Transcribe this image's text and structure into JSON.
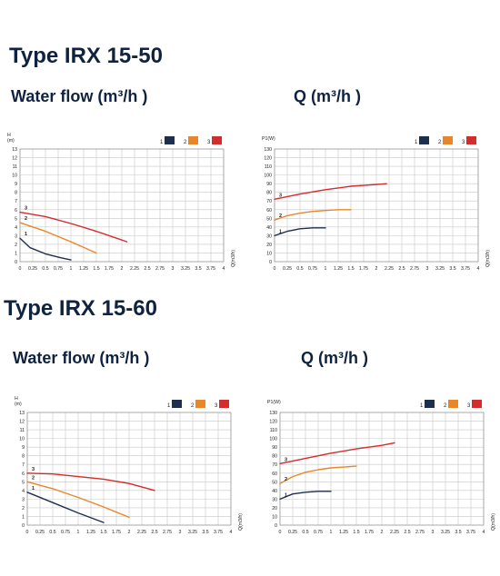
{
  "headings": {
    "type1": "Type IRX 15-50",
    "type2": "Type IRX 15-60",
    "wf1": "Water flow (m³/h )",
    "q1": "Q (m³/h )",
    "wf2": "Water flow (m³/h )",
    "q2": "Q (m³/h )"
  },
  "colors": {
    "1": "#1d2f4f",
    "2": "#e8862a",
    "3": "#d42b2b"
  },
  "chart_data": [
    {
      "type": "line",
      "ylabel_lines": [
        "H",
        "(m)"
      ],
      "xlabel": "Q(m3/h)",
      "xticks": [
        "0",
        "0.25",
        "0.5",
        "0.75",
        "1",
        "1.25",
        "1.5",
        "1.75",
        "2",
        "2.25",
        "2.5",
        "2.75",
        "3",
        "3.25",
        "3.5",
        "3.75",
        "4"
      ],
      "yticks": [
        "0",
        "1",
        "2",
        "3",
        "4",
        "5",
        "6",
        "7",
        "8",
        "9",
        "10",
        "11",
        "12",
        "13"
      ],
      "xlim": [
        0,
        4
      ],
      "ylim": [
        0,
        13
      ],
      "legend": [
        "1",
        "2",
        "3"
      ],
      "series": [
        {
          "label": "1",
          "color": "1",
          "x": [
            0,
            0.2,
            0.5,
            0.8,
            1.0
          ],
          "y": [
            2.7,
            1.6,
            0.9,
            0.45,
            0.2
          ]
        },
        {
          "label": "2",
          "color": "2",
          "x": [
            0,
            0.5,
            1.0,
            1.5
          ],
          "y": [
            4.5,
            3.5,
            2.3,
            1.0
          ]
        },
        {
          "label": "3",
          "color": "3",
          "x": [
            0,
            0.5,
            1.0,
            1.5,
            2.1
          ],
          "y": [
            5.7,
            5.2,
            4.4,
            3.5,
            2.3
          ]
        }
      ]
    },
    {
      "type": "line",
      "ylabel_lines": [
        "P1(W)"
      ],
      "xlabel": "Q(m3/h)",
      "xticks": [
        "0",
        "0.25",
        "0.5",
        "0.75",
        "1",
        "1.25",
        "1.5",
        "1.75",
        "2",
        "2.25",
        "2.5",
        "2.75",
        "3",
        "3.25",
        "3.5",
        "3.75",
        "4"
      ],
      "yticks": [
        "0",
        "10",
        "20",
        "30",
        "40",
        "50",
        "60",
        "70",
        "80",
        "90",
        "100",
        "110",
        "120",
        "130"
      ],
      "xlim": [
        0,
        4
      ],
      "ylim": [
        0,
        130
      ],
      "legend": [
        "1",
        "2",
        "3"
      ],
      "series": [
        {
          "label": "1",
          "color": "1",
          "x": [
            0,
            0.25,
            0.5,
            0.75,
            1.0
          ],
          "y": [
            30,
            35,
            38,
            39,
            39
          ]
        },
        {
          "label": "2",
          "color": "2",
          "x": [
            0,
            0.25,
            0.5,
            0.75,
            1.0,
            1.25,
            1.5
          ],
          "y": [
            48,
            53,
            56,
            58,
            59,
            60,
            60
          ]
        },
        {
          "label": "3",
          "color": "3",
          "x": [
            0,
            0.5,
            1.0,
            1.5,
            2.0,
            2.2
          ],
          "y": [
            72,
            78,
            83,
            87,
            89,
            90
          ]
        }
      ]
    },
    {
      "type": "line",
      "ylabel_lines": [
        "H",
        "(m)"
      ],
      "xlabel": "Q(m3/h)",
      "xticks": [
        "0",
        "0.25",
        "0.5",
        "0.75",
        "1",
        "1.25",
        "1.5",
        "1.75",
        "2",
        "2.25",
        "2.5",
        "2.75",
        "3",
        "3.25",
        "3.5",
        "3.75",
        "4"
      ],
      "yticks": [
        "0",
        "1",
        "2",
        "3",
        "4",
        "5",
        "6",
        "7",
        "8",
        "9",
        "10",
        "11",
        "12",
        "13"
      ],
      "xlim": [
        0,
        4
      ],
      "ylim": [
        0,
        13
      ],
      "legend": [
        "1",
        "2",
        "3"
      ],
      "series": [
        {
          "label": "1",
          "color": "1",
          "x": [
            0,
            0.5,
            1.0,
            1.5
          ],
          "y": [
            3.8,
            2.6,
            1.4,
            0.3
          ]
        },
        {
          "label": "2",
          "color": "2",
          "x": [
            0,
            0.5,
            1.0,
            1.5,
            2.0
          ],
          "y": [
            5.0,
            4.2,
            3.2,
            2.1,
            0.9
          ]
        },
        {
          "label": "3",
          "color": "3",
          "x": [
            0,
            0.5,
            1.0,
            1.5,
            2.0,
            2.5
          ],
          "y": [
            6.0,
            5.9,
            5.6,
            5.3,
            4.8,
            4.0
          ]
        }
      ]
    },
    {
      "type": "line",
      "ylabel_lines": [
        "P1(W)"
      ],
      "xlabel": "Q(m3/h)",
      "xticks": [
        "0",
        "0.25",
        "0.5",
        "0.75",
        "1",
        "1.25",
        "1.5",
        "1.75",
        "2",
        "2.25",
        "2.5",
        "2.75",
        "3",
        "3.25",
        "3.5",
        "3.75",
        "4"
      ],
      "yticks": [
        "0",
        "10",
        "20",
        "30",
        "40",
        "50",
        "60",
        "70",
        "80",
        "90",
        "100",
        "110",
        "120",
        "130"
      ],
      "xlim": [
        0,
        4
      ],
      "ylim": [
        0,
        130
      ],
      "legend": [
        "1",
        "2",
        "3"
      ],
      "series": [
        {
          "label": "1",
          "color": "1",
          "x": [
            0,
            0.25,
            0.5,
            0.75,
            1.0
          ],
          "y": [
            30,
            36,
            38,
            39,
            39
          ]
        },
        {
          "label": "2",
          "color": "2",
          "x": [
            0,
            0.25,
            0.5,
            0.75,
            1.0,
            1.25,
            1.5
          ],
          "y": [
            48,
            56,
            61,
            64,
            66,
            67,
            68
          ]
        },
        {
          "label": "3",
          "color": "3",
          "x": [
            0,
            0.5,
            1.0,
            1.5,
            2.0,
            2.25
          ],
          "y": [
            71,
            77,
            83,
            88,
            92,
            95
          ]
        }
      ]
    }
  ]
}
